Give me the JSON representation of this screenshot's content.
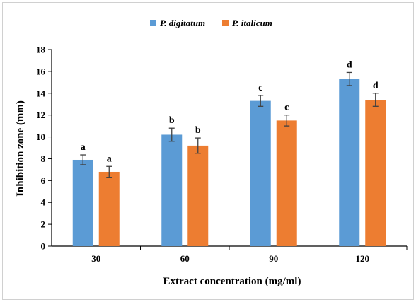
{
  "chart_data": {
    "type": "bar",
    "title": "",
    "xlabel": "Extract concentration (mg/ml)",
    "ylabel": "Inhibition zone (mm)",
    "categories": [
      "30",
      "60",
      "90",
      "120"
    ],
    "ylim": [
      0,
      18
    ],
    "yticks": [
      "0",
      "2",
      "4",
      "6",
      "8",
      "10",
      "12",
      "14",
      "16",
      "18"
    ],
    "grid": false,
    "legend_position": "top-center",
    "series": [
      {
        "name": "P. digitatum",
        "color": "#5b9bd5",
        "values": [
          7.9,
          10.2,
          13.3,
          15.3
        ],
        "errors": [
          0.45,
          0.6,
          0.5,
          0.6
        ],
        "letters": [
          "a",
          "b",
          "c",
          "d"
        ]
      },
      {
        "name": "P. italicum",
        "color": "#ed7d31",
        "values": [
          6.8,
          9.2,
          11.5,
          13.4
        ],
        "errors": [
          0.5,
          0.7,
          0.5,
          0.6
        ],
        "letters": [
          "a",
          "b",
          "c",
          "d"
        ]
      }
    ]
  }
}
